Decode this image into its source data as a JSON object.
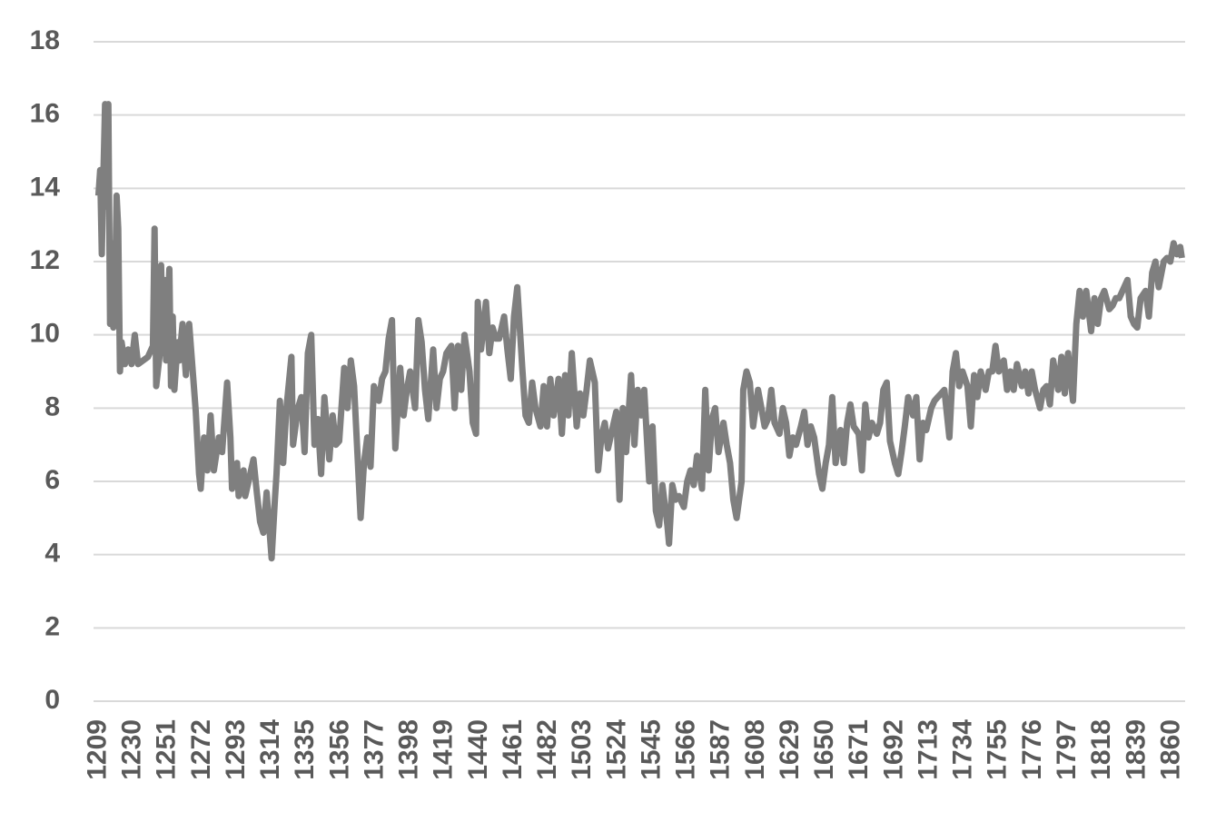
{
  "chart_data": {
    "type": "line",
    "color": "#7f7f7f",
    "grid": true,
    "x": [
      1209,
      1210,
      1211,
      1212,
      1213,
      1214,
      1215,
      1216,
      1217,
      1218,
      1219,
      1220,
      1221,
      1222,
      1223,
      1225,
      1227,
      1229,
      1231,
      1233,
      1236,
      1239,
      1242,
      1243,
      1244,
      1246,
      1247,
      1248,
      1249,
      1250,
      1252,
      1253,
      1254,
      1255,
      1257,
      1258,
      1260,
      1261,
      1262,
      1264,
      1268,
      1270,
      1271,
      1273,
      1275,
      1277,
      1279,
      1282,
      1284,
      1287,
      1289,
      1290,
      1293,
      1294,
      1297,
      1298,
      1300,
      1303,
      1305,
      1307,
      1309,
      1311,
      1314,
      1316,
      1317,
      1319,
      1321,
      1323,
      1326,
      1327,
      1330,
      1332,
      1334,
      1336,
      1338,
      1340,
      1342,
      1344,
      1346,
      1349,
      1351,
      1353,
      1355,
      1358,
      1360,
      1362,
      1364,
      1368,
      1370,
      1372,
      1374,
      1376,
      1379,
      1381,
      1383,
      1385,
      1387,
      1389,
      1392,
      1394,
      1396,
      1398,
      1401,
      1403,
      1405,
      1407,
      1409,
      1412,
      1414,
      1416,
      1418,
      1420,
      1423,
      1425,
      1427,
      1429,
      1431,
      1434,
      1436,
      1438,
      1439,
      1441,
      1444,
      1446,
      1448,
      1450,
      1452,
      1455,
      1457,
      1459,
      1461,
      1463,
      1466,
      1468,
      1470,
      1472,
      1474,
      1477,
      1479,
      1481,
      1483,
      1485,
      1488,
      1490,
      1492,
      1494,
      1496,
      1499,
      1501,
      1503,
      1505,
      1507,
      1510,
      1512,
      1514,
      1516,
      1518,
      1521,
      1523,
      1525,
      1527,
      1529,
      1532,
      1534,
      1536,
      1538,
      1540,
      1543,
      1545,
      1547,
      1549,
      1551,
      1554,
      1555,
      1557,
      1559,
      1561,
      1564,
      1566,
      1568,
      1570,
      1572,
      1575,
      1577,
      1579,
      1581,
      1583,
      1585,
      1588,
      1590,
      1592,
      1594,
      1596,
      1599,
      1600,
      1602,
      1604,
      1606,
      1609,
      1611,
      1613,
      1615,
      1617,
      1619,
      1622,
      1624,
      1626,
      1628,
      1630,
      1632,
      1635,
      1637,
      1639,
      1641,
      1643,
      1646,
      1648,
      1650,
      1652,
      1654,
      1656,
      1659,
      1661,
      1663,
      1665,
      1667,
      1670,
      1672,
      1674,
      1676,
      1678,
      1681,
      1683,
      1685,
      1687,
      1689,
      1692,
      1694,
      1696,
      1698,
      1700,
      1703,
      1705,
      1707,
      1709,
      1711,
      1714,
      1716,
      1718,
      1720,
      1722,
      1725,
      1727,
      1729,
      1731,
      1733,
      1736,
      1738,
      1740,
      1742,
      1744,
      1747,
      1749,
      1751,
      1753,
      1755,
      1758,
      1760,
      1762,
      1764,
      1766,
      1769,
      1771,
      1773,
      1775,
      1777,
      1780,
      1782,
      1784,
      1786,
      1788,
      1791,
      1793,
      1795,
      1797,
      1800,
      1802,
      1804,
      1806,
      1808,
      1811,
      1813,
      1815,
      1817,
      1819,
      1822,
      1824,
      1826,
      1828,
      1830,
      1833,
      1835,
      1837,
      1839,
      1841,
      1844,
      1846,
      1848,
      1850,
      1852,
      1855,
      1857,
      1859,
      1861,
      1863,
      1865,
      1866
    ],
    "values": [
      13.8,
      14.5,
      12.2,
      14.4,
      16.3,
      13.5,
      16.3,
      10.3,
      12.5,
      10.2,
      11.0,
      13.8,
      12.9,
      9.0,
      9.8,
      9.2,
      9.6,
      9.2,
      10.0,
      9.2,
      9.3,
      9.4,
      9.7,
      12.9,
      8.6,
      9.4,
      11.9,
      9.5,
      11.5,
      9.3,
      11.8,
      8.6,
      10.5,
      8.5,
      9.8,
      9.3,
      10.3,
      9.5,
      8.9,
      10.3,
      7.9,
      6.2,
      5.8,
      7.2,
      6.3,
      7.8,
      6.3,
      7.2,
      6.8,
      8.7,
      7.2,
      5.8,
      6.5,
      5.6,
      6.3,
      5.6,
      6.0,
      6.6,
      5.7,
      4.9,
      4.6,
      5.7,
      3.9,
      5.5,
      6.2,
      8.2,
      6.5,
      8.0,
      9.4,
      7.0,
      8.0,
      8.3,
      6.8,
      9.5,
      10.0,
      7.0,
      7.7,
      6.2,
      8.3,
      6.6,
      7.8,
      7.0,
      7.1,
      9.1,
      8.0,
      9.3,
      8.6,
      5.0,
      6.5,
      7.2,
      6.4,
      8.6,
      8.2,
      8.8,
      9.0,
      9.9,
      10.4,
      6.9,
      9.1,
      7.8,
      8.5,
      9.0,
      8.0,
      10.4,
      9.8,
      8.5,
      7.7,
      9.6,
      8.0,
      8.8,
      9.0,
      9.5,
      9.7,
      8.0,
      9.7,
      8.5,
      10.0,
      9.0,
      7.6,
      7.3,
      10.9,
      9.6,
      10.9,
      9.5,
      10.2,
      9.9,
      9.9,
      10.5,
      9.6,
      8.8,
      10.5,
      11.3,
      9.1,
      7.8,
      7.6,
      8.7,
      8.0,
      7.5,
      8.6,
      7.5,
      8.8,
      7.8,
      8.8,
      7.3,
      8.9,
      7.8,
      9.5,
      7.5,
      8.4,
      7.8,
      8.5,
      9.3,
      8.7,
      6.3,
      7.2,
      7.6,
      6.9,
      7.5,
      7.9,
      5.5,
      8.0,
      6.8,
      8.9,
      7.0,
      8.5,
      7.8,
      8.5,
      6.0,
      7.5,
      5.2,
      4.8,
      5.9,
      4.8,
      4.3,
      5.9,
      5.5,
      5.6,
      5.3,
      6.0,
      6.3,
      5.9,
      6.7,
      5.8,
      8.5,
      6.3,
      7.7,
      8.0,
      6.8,
      7.6,
      7.0,
      6.5,
      5.5,
      5.0,
      6.0,
      8.5,
      9.0,
      8.7,
      7.5,
      8.5,
      8.0,
      7.5,
      7.7,
      8.5,
      7.6,
      7.3,
      8.0,
      7.6,
      6.7,
      7.2,
      7.0,
      7.5,
      7.9,
      7.0,
      7.5,
      7.2,
      6.2,
      5.8,
      6.5,
      7.0,
      8.3,
      6.5,
      7.4,
      6.5,
      7.6,
      8.1,
      7.5,
      7.3,
      6.3,
      8.1,
      7.2,
      7.6,
      7.3,
      7.6,
      8.5,
      8.7,
      7.1,
      6.5,
      6.2,
      6.8,
      7.5,
      8.3,
      7.8,
      8.3,
      6.6,
      7.6,
      7.4,
      8.0,
      8.2,
      8.3,
      8.4,
      8.5,
      7.2,
      9.0,
      9.5,
      8.6,
      9.0,
      8.6,
      7.5,
      8.9,
      8.3,
      9.0,
      8.5,
      9.0,
      9.0,
      9.7,
      9.0,
      9.3,
      8.5,
      9.0,
      8.5,
      9.2,
      8.6,
      9.0,
      8.4,
      9.0,
      8.5,
      8.0,
      8.5,
      8.6,
      8.1,
      9.3,
      8.5,
      9.4,
      8.4,
      9.5,
      8.2,
      10.3,
      11.2,
      10.5,
      11.2,
      10.1,
      11.0,
      10.3,
      11.0,
      11.2,
      10.7,
      10.8,
      11.0,
      11.0,
      11.2,
      11.5,
      10.5,
      10.3,
      10.2,
      11.0,
      11.2,
      10.5,
      11.7,
      12.0,
      11.3,
      12.0,
      12.1,
      12.0,
      12.5,
      12.2,
      12.4,
      12.1
    ],
    "xlim": [
      1206,
      1868
    ],
    "xticks": [
      1209,
      1230,
      1251,
      1272,
      1293,
      1314,
      1335,
      1356,
      1377,
      1398,
      1419,
      1440,
      1461,
      1482,
      1503,
      1524,
      1545,
      1566,
      1587,
      1608,
      1629,
      1650,
      1671,
      1692,
      1713,
      1734,
      1755,
      1776,
      1797,
      1818,
      1839,
      1860
    ],
    "ylim": [
      0,
      18
    ],
    "yticks": [
      0,
      2,
      4,
      6,
      8,
      10,
      12,
      14,
      16,
      18
    ]
  }
}
